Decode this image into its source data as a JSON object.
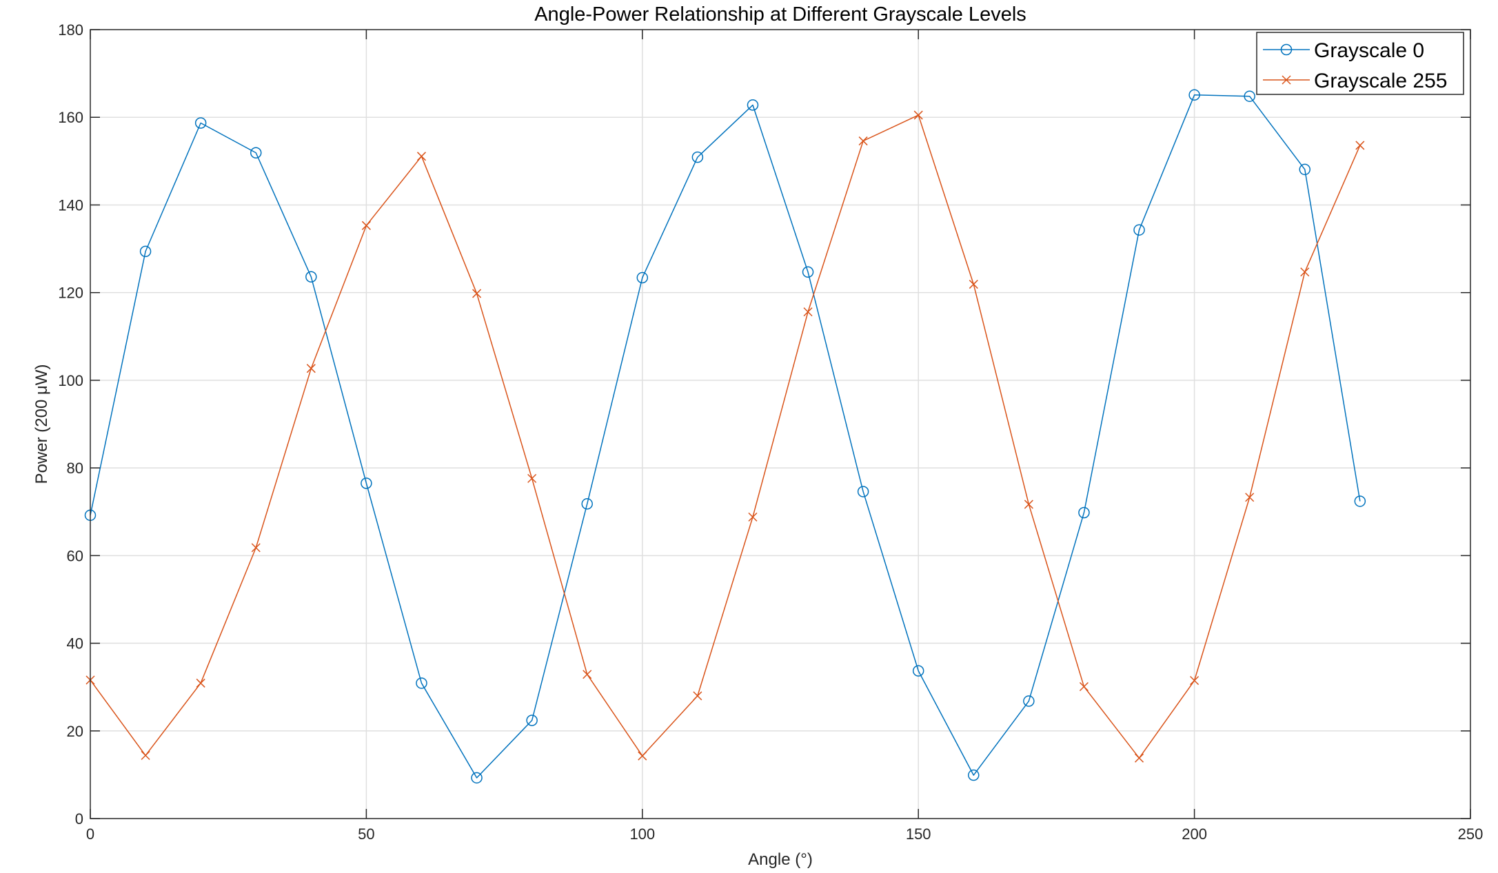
{
  "chart_data": {
    "type": "line",
    "title": "Angle-Power Relationship at Different Grayscale Levels",
    "xlabel": "Angle (°)",
    "ylabel": "Power (200 μW)",
    "xlim": [
      0,
      250
    ],
    "ylim": [
      0,
      180
    ],
    "xticks": [
      0,
      50,
      100,
      150,
      200,
      250
    ],
    "yticks": [
      0,
      20,
      40,
      60,
      80,
      100,
      120,
      140,
      160,
      180
    ],
    "grid": true,
    "legend_position": "top-right",
    "x": [
      0,
      10,
      20,
      30,
      40,
      50,
      60,
      70,
      80,
      90,
      100,
      110,
      120,
      130,
      140,
      150,
      160,
      170,
      180,
      190,
      200,
      210,
      220,
      230
    ],
    "series": [
      {
        "name": "Grayscale 0",
        "color": "#0072BD",
        "marker": "circle",
        "values": [
          69.2,
          129.4,
          158.7,
          151.9,
          123.6,
          76.5,
          30.9,
          9.3,
          22.4,
          71.8,
          123.4,
          150.9,
          162.8,
          124.7,
          74.6,
          33.7,
          9.9,
          26.8,
          69.8,
          134.3,
          165.1,
          164.8,
          148.1,
          72.4
        ]
      },
      {
        "name": "Grayscale 255",
        "color": "#D95319",
        "marker": "x",
        "values": [
          31.6,
          14.4,
          30.9,
          61.8,
          102.7,
          135.3,
          151.1,
          119.8,
          77.6,
          32.9,
          14.3,
          28.0,
          68.8,
          115.6,
          154.6,
          160.5,
          121.9,
          71.7,
          30.1,
          13.8,
          31.5,
          73.3,
          124.7,
          153.6
        ]
      }
    ]
  }
}
